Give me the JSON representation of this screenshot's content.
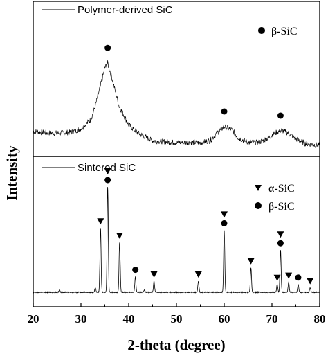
{
  "chart_data": [
    {
      "type": "line",
      "panel": "top",
      "series": [
        {
          "name": "Polymer-derived SiC"
        }
      ],
      "x": [
        20,
        24,
        28,
        30,
        32,
        33,
        34,
        35,
        35.6,
        36.5,
        38,
        40,
        42,
        45,
        50,
        55,
        57,
        58.5,
        60,
        61.5,
        63,
        65,
        67,
        69,
        70.5,
        72,
        73.5,
        75,
        77,
        80
      ],
      "y": [
        0.15,
        0.13,
        0.14,
        0.18,
        0.27,
        0.42,
        0.62,
        0.83,
        0.88,
        0.72,
        0.42,
        0.22,
        0.13,
        0.05,
        0.03,
        0.03,
        0.05,
        0.13,
        0.2,
        0.17,
        0.08,
        0.03,
        0.03,
        0.07,
        0.13,
        0.16,
        0.13,
        0.07,
        0.02,
        0.0
      ],
      "markers": [
        {
          "symbol": "circle",
          "phase": "β-SiC",
          "x": 35.6
        },
        {
          "symbol": "circle",
          "phase": "β-SiC",
          "x": 60.0
        },
        {
          "symbol": "circle",
          "phase": "β-SiC",
          "x": 71.8
        }
      ]
    },
    {
      "type": "line",
      "panel": "bottom",
      "series": [
        {
          "name": "Sintered SiC"
        }
      ],
      "x_peaks": [
        25.5,
        33.0,
        34.1,
        35.6,
        38.1,
        41.4,
        43.3,
        45.3,
        54.6,
        60.0,
        65.6,
        71.1,
        71.8,
        73.5,
        75.5,
        78.0
      ],
      "peak_heights": [
        0.02,
        0.04,
        0.58,
        0.95,
        0.45,
        0.14,
        0.02,
        0.1,
        0.1,
        0.56,
        0.22,
        0.07,
        0.38,
        0.09,
        0.07,
        0.04
      ],
      "markers": [
        {
          "symbol": "triangle-down",
          "phase": "α-SiC",
          "x": 34.1
        },
        {
          "symbol": "triangle-down",
          "phase": "α-SiC",
          "x": 35.6
        },
        {
          "symbol": "circle",
          "phase": "β-SiC",
          "x": 35.6
        },
        {
          "symbol": "triangle-down",
          "phase": "α-SiC",
          "x": 38.1
        },
        {
          "symbol": "circle",
          "phase": "β-SiC",
          "x": 41.4
        },
        {
          "symbol": "triangle-down",
          "phase": "α-SiC",
          "x": 45.3
        },
        {
          "symbol": "triangle-down",
          "phase": "α-SiC",
          "x": 54.6
        },
        {
          "symbol": "triangle-down",
          "phase": "α-SiC",
          "x": 60.0
        },
        {
          "symbol": "circle",
          "phase": "β-SiC",
          "x": 60.0
        },
        {
          "symbol": "triangle-down",
          "phase": "α-SiC",
          "x": 65.6
        },
        {
          "symbol": "triangle-down",
          "phase": "α-SiC",
          "x": 71.1
        },
        {
          "symbol": "triangle-down",
          "phase": "α-SiC",
          "x": 71.8
        },
        {
          "symbol": "circle",
          "phase": "β-SiC",
          "x": 71.8
        },
        {
          "symbol": "triangle-down",
          "phase": "α-SiC",
          "x": 73.5
        },
        {
          "symbol": "circle",
          "phase": "β-SiC",
          "x": 75.5
        },
        {
          "symbol": "triangle-down",
          "phase": "α-SiC",
          "x": 78.0
        }
      ]
    }
  ],
  "axes": {
    "xlabel": "2-theta (degree)",
    "ylabel": "Intensity",
    "xlim": [
      20,
      80
    ],
    "xticks": [
      20,
      30,
      40,
      50,
      60,
      70,
      80
    ],
    "xtick_labels": [
      "20",
      "30",
      "40",
      "50",
      "60",
      "70",
      "80"
    ]
  },
  "top_legend": {
    "label": "Polymer-derived SiC",
    "key": "β-SiC"
  },
  "bottom_legend": {
    "label": "Sintered SiC",
    "keys": [
      "α-SiC",
      "β-SiC"
    ]
  }
}
